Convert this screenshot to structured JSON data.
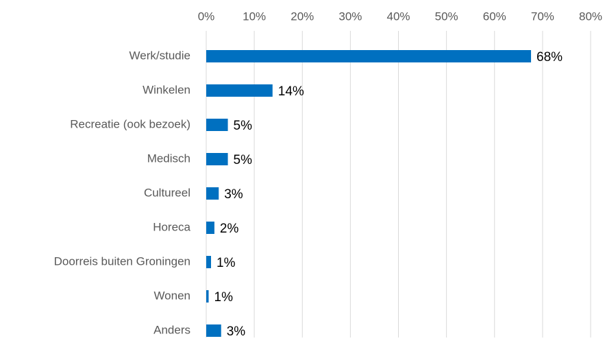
{
  "chart_data": {
    "type": "bar",
    "orientation": "horizontal",
    "categories": [
      "Werk/studie",
      "Winkelen",
      "Recreatie (ook bezoek)",
      "Medisch",
      "Cultureel",
      "Horeca",
      "Doorreis buiten Groningen",
      "Wonen",
      "Anders"
    ],
    "values": [
      67.6,
      13.8,
      4.5,
      4.5,
      2.6,
      1.7,
      1.0,
      0.5,
      3.1
    ],
    "value_labels": [
      "68%",
      "14%",
      "5%",
      "5%",
      "3%",
      "2%",
      "1%",
      "1%",
      "3%"
    ],
    "color": "#0070c0",
    "xlim": [
      0,
      80
    ],
    "xticks": [
      {
        "value": 0,
        "label": "0%"
      },
      {
        "value": 10,
        "label": "10%"
      },
      {
        "value": 20,
        "label": "20%"
      },
      {
        "value": 30,
        "label": "30%"
      },
      {
        "value": 40,
        "label": "40%"
      },
      {
        "value": 50,
        "label": "50%"
      },
      {
        "value": 60,
        "label": "60%"
      },
      {
        "value": 70,
        "label": "70%"
      },
      {
        "value": 80,
        "label": "80%"
      }
    ],
    "grid": true
  }
}
